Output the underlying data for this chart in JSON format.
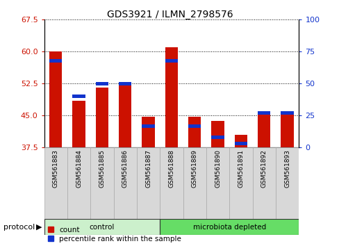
{
  "title": "GDS3921 / ILMN_2798576",
  "samples": [
    "GSM561883",
    "GSM561884",
    "GSM561885",
    "GSM561886",
    "GSM561887",
    "GSM561888",
    "GSM561889",
    "GSM561890",
    "GSM561891",
    "GSM561892",
    "GSM561893"
  ],
  "red_values": [
    60.1,
    48.5,
    51.5,
    52.0,
    44.8,
    61.1,
    44.8,
    43.8,
    40.5,
    46.0,
    46.0
  ],
  "blue_pct": [
    68,
    40,
    50,
    50,
    17,
    68,
    17,
    8,
    3,
    27,
    27
  ],
  "groups": [
    {
      "label": "control",
      "start": 0,
      "end": 5,
      "color": "#ccf0cc"
    },
    {
      "label": "microbiota depleted",
      "start": 5,
      "end": 11,
      "color": "#66dd66"
    }
  ],
  "ylim_left": [
    37.5,
    67.5
  ],
  "ylim_right": [
    0,
    100
  ],
  "yticks_left": [
    37.5,
    45.0,
    52.5,
    60.0,
    67.5
  ],
  "yticks_right": [
    0,
    25,
    50,
    75,
    100
  ],
  "bar_red": "#cc1100",
  "bar_blue": "#1133cc",
  "bar_width": 0.55,
  "legend_items": [
    {
      "label": "count",
      "color": "#cc1100"
    },
    {
      "label": "percentile rank within the sample",
      "color": "#1133cc"
    }
  ],
  "protocol_label": "protocol"
}
